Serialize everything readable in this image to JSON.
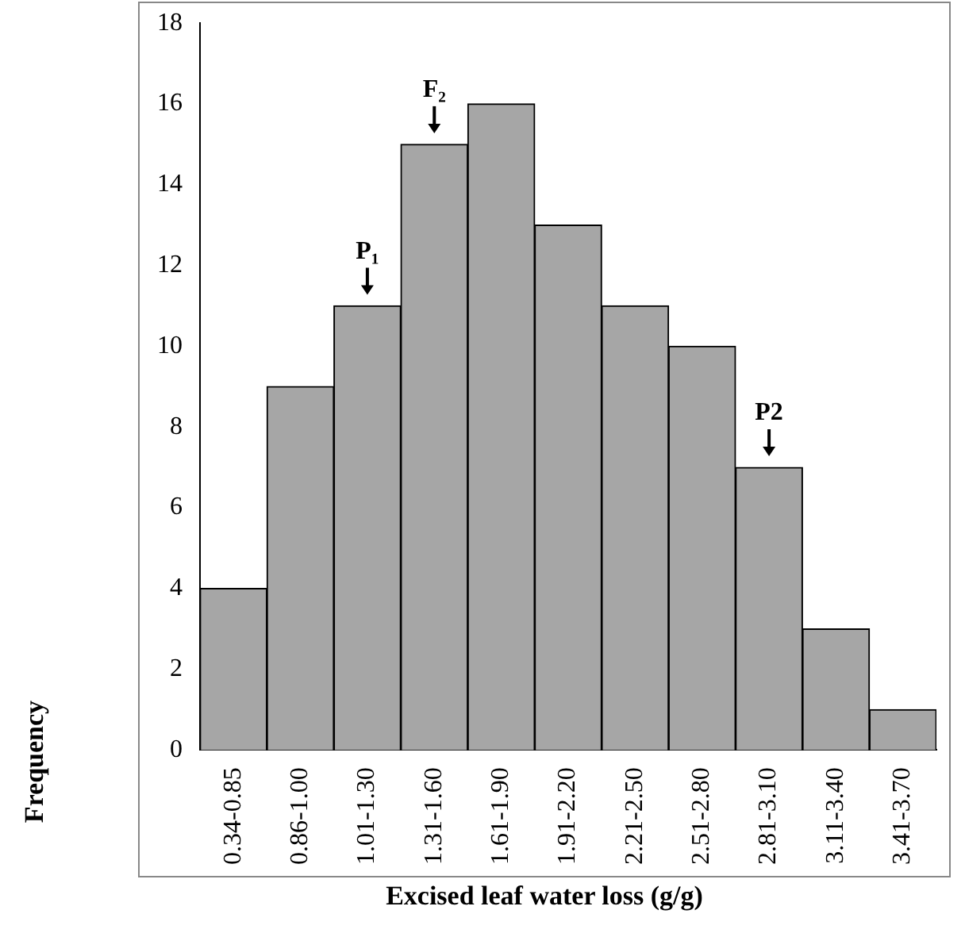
{
  "chart_data": {
    "type": "bar",
    "xlabel": "Excised leaf water loss (g/g)",
    "ylabel": "Frequency",
    "categories": [
      "0.34-0.85",
      "0.86-1.00",
      "1.01-1.30",
      "1.31-1.60",
      "1.61-1.90",
      "1.91-2.20",
      "2.21-2.50",
      "2.51-2.80",
      "2.81-3.10",
      "3.11-3.40",
      "3.41-3.70"
    ],
    "values": [
      4,
      9,
      11,
      15,
      16,
      13,
      11,
      10,
      7,
      3,
      1
    ],
    "color": "#a6a6a6",
    "ylim": [
      0,
      18
    ],
    "yticks": [
      0,
      2,
      4,
      6,
      8,
      10,
      12,
      14,
      16,
      18
    ],
    "grid": false,
    "legend": false,
    "annotations": [
      {
        "text": "P₁",
        "x": "1.01-1.30",
        "y": 11
      },
      {
        "text": "F₂",
        "x": "1.31-1.60",
        "y": 15
      },
      {
        "text": "P2",
        "x": "2.81-3.10",
        "y": 7
      }
    ]
  }
}
